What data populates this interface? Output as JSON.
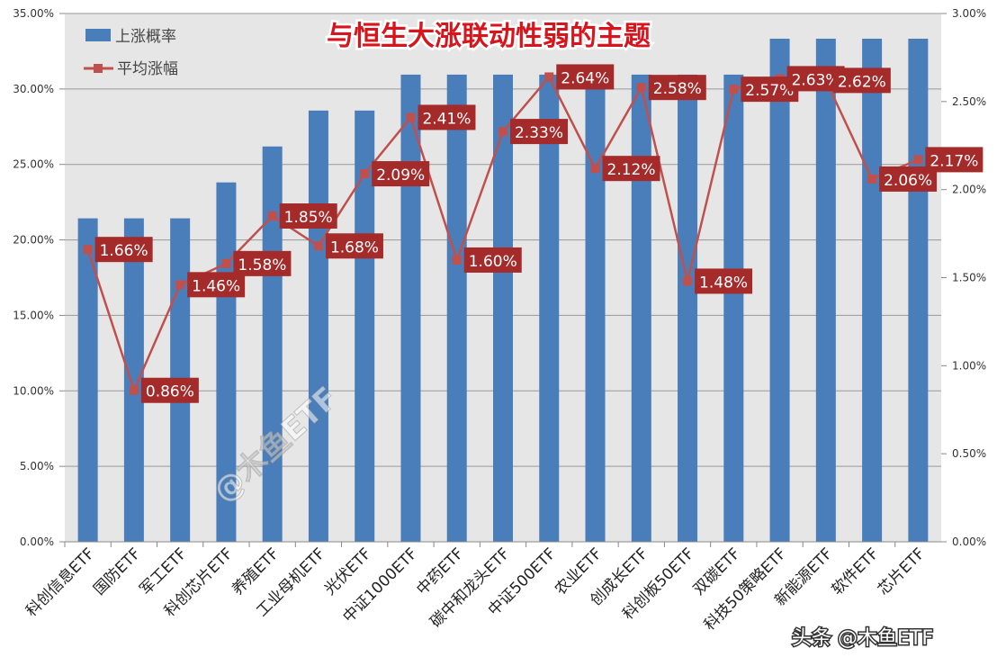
{
  "chart_data": {
    "type": "bar+line",
    "title": "与恒生大涨联动性弱的主题",
    "categories": [
      "科创信息ETF",
      "国防ETF",
      "军工ETF",
      "科创芯片ETF",
      "养殖ETF",
      "工业母机ETF",
      "光伏ETF",
      "中证1000ETF",
      "中药ETF",
      "碳中和龙头ETF",
      "中证500ETF",
      "农业ETF",
      "创成长ETF",
      "科创板50ETF",
      "双碳ETF",
      "科技50策略ETF",
      "新能源ETF",
      "软件ETF",
      "芯片ETF"
    ],
    "series": [
      {
        "name": "上涨概率",
        "type": "bar",
        "axis": "left",
        "color": "#4a7ebb",
        "values": [
          21.43,
          21.43,
          21.43,
          23.81,
          26.19,
          28.57,
          28.57,
          30.95,
          30.95,
          30.95,
          30.95,
          30.95,
          30.95,
          30.95,
          30.95,
          33.33,
          33.33,
          33.33,
          33.33
        ]
      },
      {
        "name": "平均涨幅",
        "type": "line",
        "axis": "right",
        "color": "#c0504d",
        "values": [
          1.66,
          0.86,
          1.46,
          1.58,
          1.85,
          1.68,
          2.09,
          2.41,
          1.6,
          2.33,
          2.64,
          2.12,
          2.58,
          1.48,
          2.57,
          2.63,
          2.62,
          2.06,
          2.17
        ],
        "data_labels": [
          "1.66%",
          "0.86%",
          "1.46%",
          "1.58%",
          "1.85%",
          "1.68%",
          "2.09%",
          "2.41%",
          "1.60%",
          "2.33%",
          "2.64%",
          "2.12%",
          "2.58%",
          "1.48%",
          "2.57%",
          "2.63%",
          "2.62%",
          "2.06%",
          "2.17%"
        ]
      }
    ],
    "left_axis": {
      "ylim": [
        0,
        35
      ],
      "ticks": [
        "0.00%",
        "5.00%",
        "10.00%",
        "15.00%",
        "20.00%",
        "25.00%",
        "30.00%",
        "35.00%"
      ]
    },
    "right_axis": {
      "ylim": [
        0,
        3
      ],
      "ticks": [
        "0.00%",
        "0.50%",
        "1.00%",
        "1.50%",
        "2.00%",
        "2.50%",
        "3.00%"
      ]
    },
    "grid": true,
    "legend": "top-left",
    "label_bg_color": "#a52a2a"
  },
  "watermark": "@木鱼ETF",
  "footer_watermark": "头条 @木鱼ETF"
}
